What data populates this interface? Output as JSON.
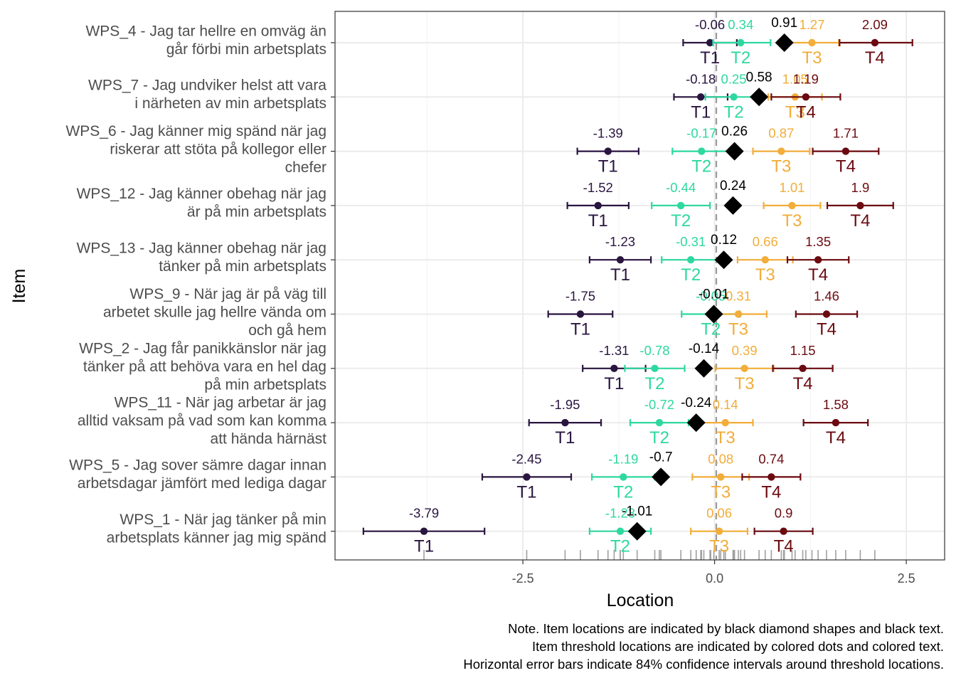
{
  "colors": {
    "T1": "#2a1540",
    "T2": "#2ed8a0",
    "T3": "#f2ad3a",
    "T4": "#6b0a10",
    "item": "#000000",
    "grid": "#ebebeb",
    "rug": "#a0a0a0"
  },
  "chart_data": {
    "type": "scatter",
    "xlabel": "Location",
    "ylabel": "Item",
    "xlim": [
      -4.95,
      3.0
    ],
    "xticks": [
      -2.5,
      0.0,
      2.5
    ],
    "xtick_labels": [
      "-2.5",
      "0.0",
      "2.5"
    ],
    "reference_line": 0,
    "grid": true,
    "threshold_labels": [
      "T1",
      "T2",
      "T3",
      "T4"
    ],
    "confidence_level": "84%",
    "items": [
      {
        "label": [
          "WPS_4 - Jag tar hellre en omväg än",
          "går förbi min arbetsplats"
        ],
        "location": 0.91,
        "location_label": "0.91",
        "thresholds": [
          {
            "name": "T1",
            "value": -0.06,
            "label": "-0.06",
            "ci": [
              -0.41,
              0.29
            ]
          },
          {
            "name": "T2",
            "value": 0.34,
            "label": "0.34",
            "ci": [
              -0.02,
              0.73
            ]
          },
          {
            "name": "T3",
            "value": 1.27,
            "label": "1.27",
            "ci": [
              0.9,
              1.62
            ]
          },
          {
            "name": "T4",
            "value": 2.09,
            "label": "2.09",
            "ci": [
              1.63,
              2.58
            ]
          }
        ]
      },
      {
        "label": [
          "WPS_7 - Jag undviker helst att vara",
          "i närheten av min arbetsplats"
        ],
        "location": 0.58,
        "location_label": "0.58",
        "thresholds": [
          {
            "name": "T1",
            "value": -0.18,
            "label": "-0.18",
            "ci": [
              -0.53,
              0.17
            ]
          },
          {
            "name": "T2",
            "value": 0.25,
            "label": "0.25",
            "ci": [
              -0.12,
              0.62
            ]
          },
          {
            "name": "T3",
            "value": 1.05,
            "label": "1.05",
            "ci": [
              0.7,
              1.4
            ]
          },
          {
            "name": "T4",
            "value": 1.19,
            "label": "1.19",
            "ci": [
              0.74,
              1.64
            ]
          }
        ]
      },
      {
        "label": [
          "WPS_6 - Jag känner mig spänd när jag",
          "riskerar att stöta på kollegor eller",
          "chefer"
        ],
        "location": 0.26,
        "location_label": "0.26",
        "thresholds": [
          {
            "name": "T1",
            "value": -1.39,
            "label": "-1.39",
            "ci": [
              -1.79,
              -0.99
            ]
          },
          {
            "name": "T2",
            "value": -0.17,
            "label": "-0.17",
            "ci": [
              -0.55,
              0.21
            ]
          },
          {
            "name": "T3",
            "value": 0.87,
            "label": "0.87",
            "ci": [
              0.5,
              1.24
            ]
          },
          {
            "name": "T4",
            "value": 1.71,
            "label": "1.71",
            "ci": [
              1.28,
              2.14
            ]
          }
        ]
      },
      {
        "label": [
          "WPS_12 - Jag känner obehag när jag",
          "är på min arbetsplats"
        ],
        "location": 0.24,
        "location_label": "0.24",
        "thresholds": [
          {
            "name": "T1",
            "value": -1.52,
            "label": "-1.52",
            "ci": [
              -1.92,
              -1.12
            ]
          },
          {
            "name": "T2",
            "value": -0.44,
            "label": "-0.44",
            "ci": [
              -0.82,
              -0.06
            ]
          },
          {
            "name": "T3",
            "value": 1.01,
            "label": "1.01",
            "ci": [
              0.64,
              1.38
            ]
          },
          {
            "name": "T4",
            "value": 1.9,
            "label": "1.9",
            "ci": [
              1.47,
              2.33
            ]
          }
        ]
      },
      {
        "label": [
          "WPS_13 - Jag känner obehag när jag",
          "tänker på min arbetsplats"
        ],
        "location": 0.12,
        "location_label": "0.12",
        "thresholds": [
          {
            "name": "T1",
            "value": -1.23,
            "label": "-1.23",
            "ci": [
              -1.63,
              -0.83
            ]
          },
          {
            "name": "T2",
            "value": -0.31,
            "label": "-0.31",
            "ci": [
              -0.69,
              0.07
            ]
          },
          {
            "name": "T3",
            "value": 0.66,
            "label": "0.66",
            "ci": [
              0.3,
              1.02
            ]
          },
          {
            "name": "T4",
            "value": 1.35,
            "label": "1.35",
            "ci": [
              0.95,
              1.75
            ]
          }
        ]
      },
      {
        "label": [
          "WPS_9 - När jag är på väg till",
          "arbetet skulle jag hellre vända om",
          "och gå hem"
        ],
        "location": -0.01,
        "location_label": "-0.01",
        "thresholds": [
          {
            "name": "T1",
            "value": -1.75,
            "label": "-1.75",
            "ci": [
              -2.17,
              -1.33
            ]
          },
          {
            "name": "T2",
            "value": -0.05,
            "label": "-0.05",
            "ci": [
              -0.43,
              0.33
            ]
          },
          {
            "name": "T3",
            "value": 0.31,
            "label": "0.31",
            "ci": [
              -0.06,
              0.68
            ]
          },
          {
            "name": "T4",
            "value": 1.46,
            "label": "1.46",
            "ci": [
              1.06,
              1.86
            ]
          }
        ]
      },
      {
        "label": [
          "WPS_2 - Jag får panikkänslor när jag",
          "tänker på att behöva vara en hel dag",
          "på min arbetsplats"
        ],
        "location": -0.14,
        "location_label": "-0.14",
        "thresholds": [
          {
            "name": "T1",
            "value": -1.31,
            "label": "-1.31",
            "ci": [
              -1.72,
              -0.9
            ]
          },
          {
            "name": "T2",
            "value": -0.78,
            "label": "-0.78",
            "ci": [
              -1.17,
              -0.39
            ]
          },
          {
            "name": "T3",
            "value": 0.39,
            "label": "0.39",
            "ci": [
              0.01,
              0.77
            ]
          },
          {
            "name": "T4",
            "value": 1.15,
            "label": "1.15",
            "ci": [
              0.76,
              1.54
            ]
          }
        ]
      },
      {
        "label": [
          "WPS_11 - När jag arbetar är jag",
          "alltid vaksam på vad som kan komma",
          "att hända härnäst"
        ],
        "location": -0.24,
        "location_label": "-0.24",
        "thresholds": [
          {
            "name": "T1",
            "value": -1.95,
            "label": "-1.95",
            "ci": [
              -2.42,
              -1.48
            ]
          },
          {
            "name": "T2",
            "value": -0.72,
            "label": "-0.72",
            "ci": [
              -1.1,
              -0.34
            ]
          },
          {
            "name": "T3",
            "value": 0.14,
            "label": "0.14",
            "ci": [
              -0.22,
              0.5
            ]
          },
          {
            "name": "T4",
            "value": 1.58,
            "label": "1.58",
            "ci": [
              1.16,
              2.0
            ]
          }
        ]
      },
      {
        "label": [
          "WPS_5 - Jag sover sämre dagar innan",
          "arbetsdagar jämfört med lediga dagar"
        ],
        "location": -0.7,
        "location_label": "-0.7",
        "thresholds": [
          {
            "name": "T1",
            "value": -2.45,
            "label": "-2.45",
            "ci": [
              -3.03,
              -1.87
            ]
          },
          {
            "name": "T2",
            "value": -1.19,
            "label": "-1.19",
            "ci": [
              -1.6,
              -0.78
            ]
          },
          {
            "name": "T3",
            "value": 0.08,
            "label": "0.08",
            "ci": [
              -0.29,
              0.45
            ]
          },
          {
            "name": "T4",
            "value": 0.74,
            "label": "0.74",
            "ci": [
              0.36,
              1.12
            ]
          }
        ]
      },
      {
        "label": [
          "WPS_1 - När jag tänker på min",
          "arbetsplats känner jag mig spänd"
        ],
        "location": -1.01,
        "location_label": "-1.01",
        "thresholds": [
          {
            "name": "T1",
            "value": -3.79,
            "label": "-3.79",
            "ci": [
              -4.58,
              -3.0
            ]
          },
          {
            "name": "T2",
            "value": -1.23,
            "label": "-1.23",
            "ci": [
              -1.63,
              -0.83
            ]
          },
          {
            "name": "T3",
            "value": 0.06,
            "label": "0.06",
            "ci": [
              -0.31,
              0.43
            ]
          },
          {
            "name": "T4",
            "value": 0.9,
            "label": "0.9",
            "ci": [
              0.52,
              1.28
            ]
          }
        ]
      }
    ],
    "rug_locations": [
      -3.79,
      -2.45,
      -1.95,
      -1.75,
      -1.52,
      -1.39,
      -1.31,
      -1.23,
      -1.23,
      -1.19,
      -1.01,
      -0.78,
      -0.72,
      -0.7,
      -0.44,
      -0.31,
      -0.24,
      -0.18,
      -0.17,
      -0.14,
      -0.06,
      -0.05,
      -0.01,
      0.06,
      0.08,
      0.12,
      0.14,
      0.24,
      0.25,
      0.26,
      0.31,
      0.34,
      0.39,
      0.58,
      0.66,
      0.74,
      0.87,
      0.9,
      0.91,
      1.01,
      1.05,
      1.15,
      1.19,
      1.27,
      1.35,
      1.46,
      1.58,
      1.71,
      1.9,
      2.09
    ]
  },
  "notes": [
    "Note. Item locations are indicated by black diamond shapes and black text.",
    "Item threshold locations are indicated by colored dots and colored text.",
    "Horizontal error bars indicate 84% confidence intervals around threshold locations."
  ]
}
